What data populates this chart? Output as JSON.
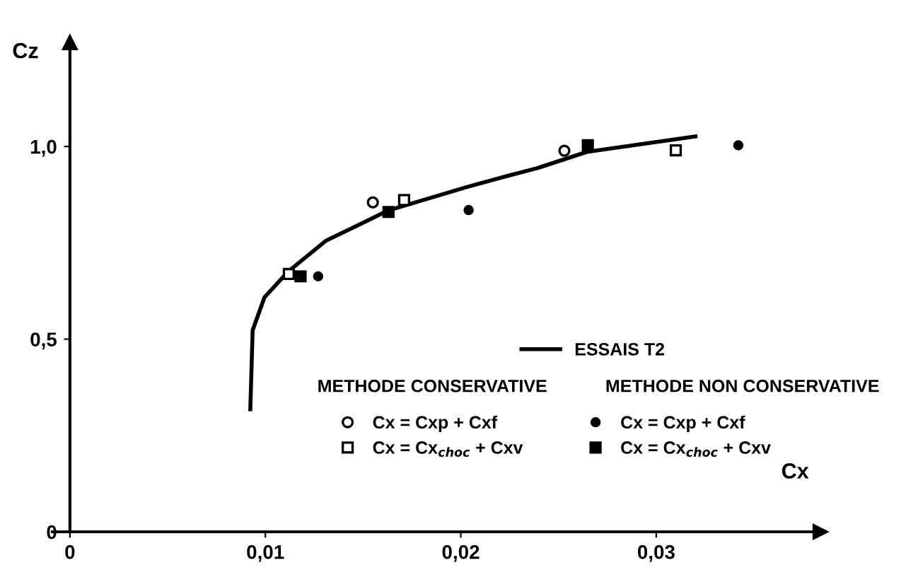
{
  "chart_data": {
    "type": "scatter",
    "xlabel": "Cx",
    "ylabel": "Cz",
    "xlim": [
      -0.0009,
      0.0384
    ],
    "ylim": [
      0,
      1.27
    ],
    "xticks": [
      0,
      {
        "value": 0.01,
        "label": "0,01"
      },
      {
        "value": 0.02,
        "label": "0,02"
      },
      {
        "value": 0.03,
        "label": "0,03"
      }
    ],
    "yticks": [
      0,
      {
        "value": 0.5,
        "label": "0,5"
      },
      {
        "value": 1.0,
        "label": "1,0"
      }
    ],
    "grid": false,
    "legend": "right",
    "annotations": [
      "METHODE CONSERVATIVE",
      "METHODE NON CONSERVATIVE"
    ],
    "series": [
      {
        "name": "ESSAIS T2",
        "type": "line",
        "color": "#000000",
        "marker": "none",
        "line_style": "solid",
        "x": [
          0.00923,
          0.00935,
          0.00995,
          0.01116,
          0.01309,
          0.01629,
          0.02032,
          0.02249,
          0.02393,
          0.02646,
          0.03201
        ],
        "values": [
          0.318,
          0.523,
          0.608,
          0.675,
          0.755,
          0.834,
          0.895,
          0.925,
          0.944,
          0.986,
          1.026
        ]
      },
      {
        "name": "Cx = Cxp + Cxf",
        "color": "#000000",
        "marker": "circle",
        "x": [
          0.0155,
          0.0253
        ],
        "values": [
          0.855,
          0.989
        ]
      },
      {
        "name": "Cx = Cx$_{choc}$ + Cxv",
        "color": "#000000",
        "marker": "square",
        "x": [
          0.0112,
          0.0171,
          0.031
        ],
        "values": [
          0.669,
          0.861,
          0.99
        ]
      },
      {
        "name": "Cx = Cxp + Cxf",
        "color": "#000000",
        "marker": "circle",
        "x": [
          0.0127,
          0.0204,
          0.0342
        ],
        "values": [
          0.663,
          0.835,
          1.003
        ]
      },
      {
        "name": "Cx = Cx$_{choc}$ + Cxv",
        "color": "#000000",
        "marker": "square",
        "x": [
          0.0118,
          0.0163,
          0.0265
        ],
        "values": [
          0.663,
          0.83,
          1.003
        ]
      }
    ]
  }
}
